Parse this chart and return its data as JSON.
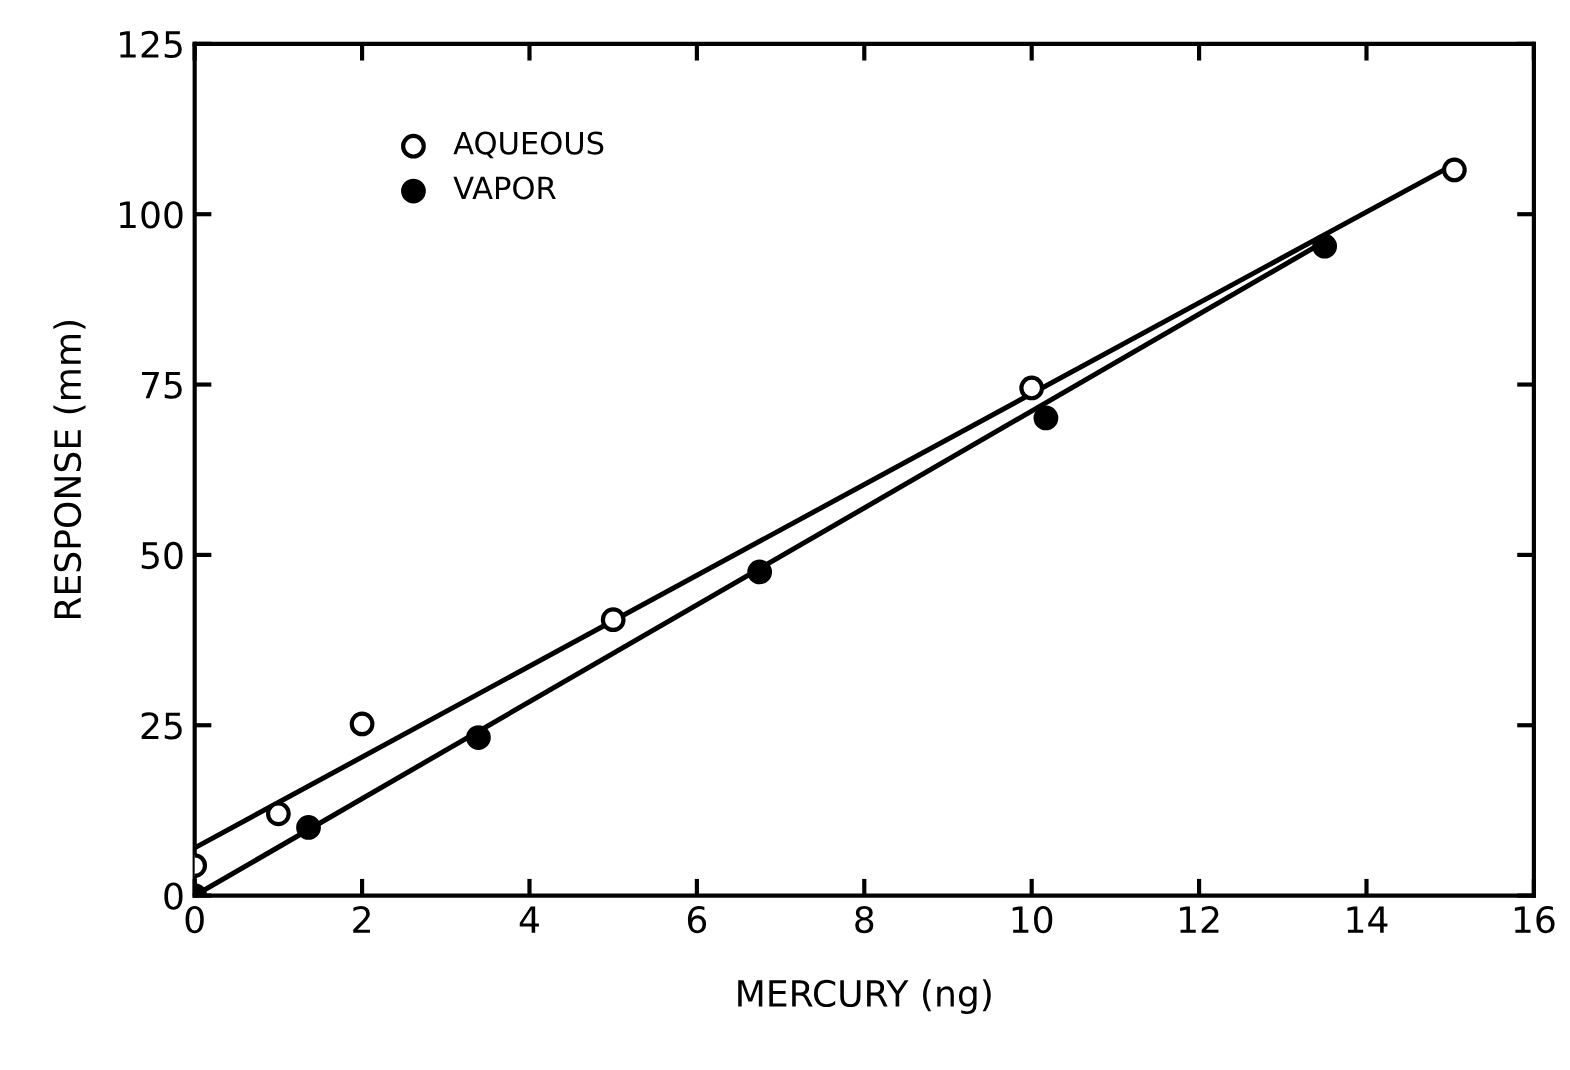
{
  "chart_data": {
    "type": "scatter",
    "xlabel": "MERCURY (ng)",
    "ylabel": "RESPONSE (mm)",
    "xlim": [
      0,
      16
    ],
    "ylim": [
      0,
      125
    ],
    "xticks": [
      0,
      2,
      4,
      6,
      8,
      10,
      12,
      14,
      16
    ],
    "yticks": [
      0,
      25,
      50,
      75,
      100,
      125
    ],
    "grid": false,
    "legend": "top left",
    "series": [
      {
        "name": "AQUEOUS",
        "marker": "circle",
        "color": "#ffffff",
        "x": [
          0,
          1,
          2,
          5,
          10,
          15.05
        ],
        "values": [
          4.4,
          12,
          25.2,
          40.5,
          74.5,
          106.5
        ]
      },
      {
        "name": "VAPOR",
        "marker": "circle",
        "color": "#000000",
        "x": [
          0,
          1.36,
          3.39,
          6.75,
          10.17,
          13.5
        ],
        "values": [
          0,
          10,
          23.2,
          47.5,
          70.1,
          95.3
        ]
      },
      {
        "type": "line",
        "marker": "none",
        "color": "#000000",
        "x": [
          0,
          15
        ],
        "values": [
          7,
          107
        ]
      },
      {
        "type": "line",
        "marker": "none",
        "color": "#000000",
        "x": [
          0,
          13.5
        ],
        "values": [
          0,
          96
        ]
      }
    ]
  }
}
